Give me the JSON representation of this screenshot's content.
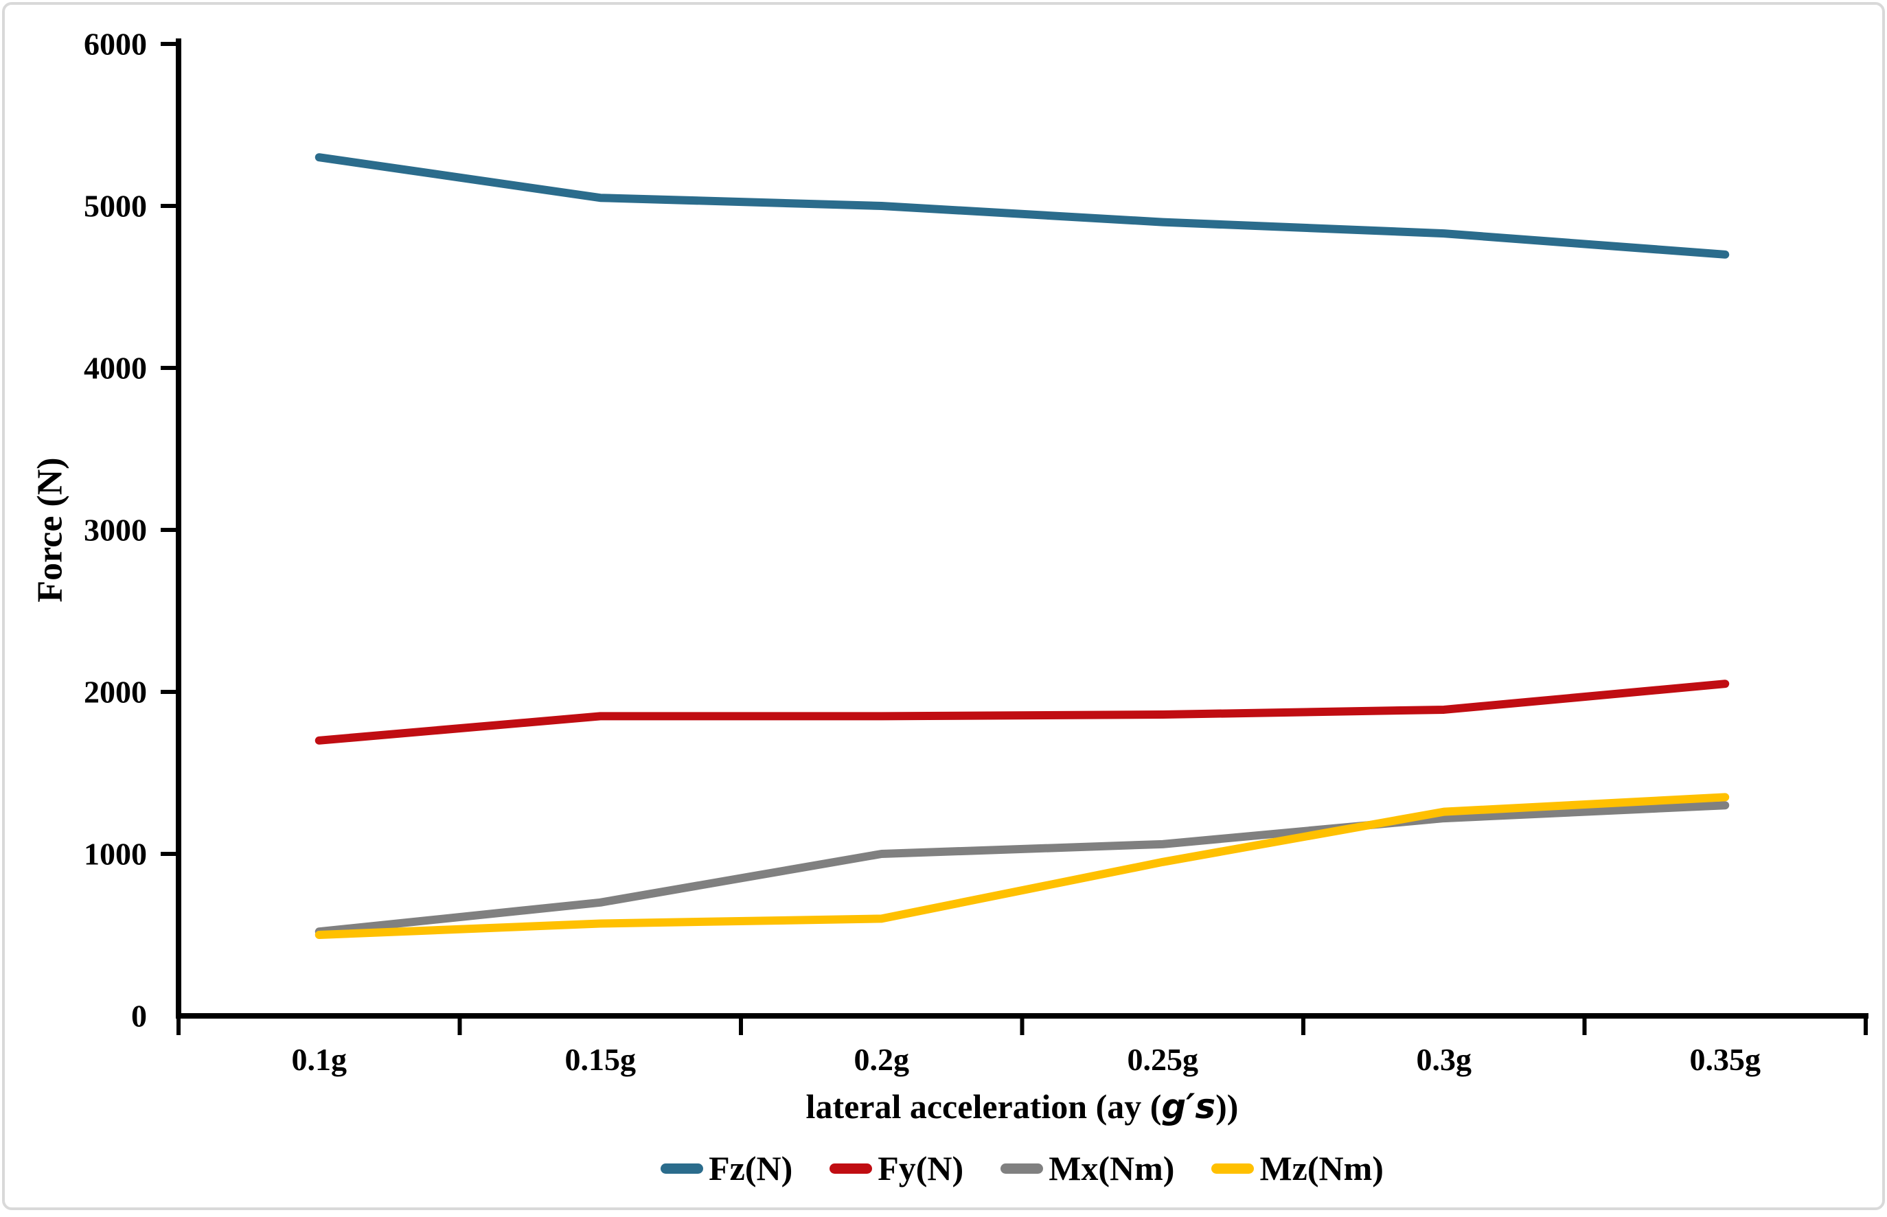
{
  "figure": {
    "background": "#ffffff",
    "border_color": "#d9d9d9"
  },
  "chart_data": {
    "type": "line",
    "title": "",
    "categories": [
      "0.1g",
      "0.15g",
      "0.2g",
      "0.25g",
      "0.3g",
      "0.35g"
    ],
    "series": [
      {
        "name": "Fz(N)",
        "color": "#2b6c8c",
        "values": [
          5300,
          5050,
          5000,
          4900,
          4830,
          4700
        ]
      },
      {
        "name": "Fy(N)",
        "color": "#c00d12",
        "values": [
          1700,
          1850,
          1850,
          1860,
          1890,
          2050
        ]
      },
      {
        "name": "Mx(Nm)",
        "color": "#808080",
        "values": [
          520,
          700,
          1000,
          1060,
          1220,
          1300
        ]
      },
      {
        "name": "Mz(Nm)",
        "color": "#ffc000",
        "values": [
          500,
          570,
          600,
          950,
          1260,
          1350
        ]
      }
    ],
    "xlabel_prefix": "lateral acceleration (ay (",
    "xlabel_italic": "g′s",
    "xlabel_suffix": "))",
    "ylabel": "Force (N)",
    "ylim": [
      0,
      6000
    ],
    "ytick_step": 1000,
    "ytick_labels": [
      "0",
      "1000",
      "2000",
      "3000",
      "4000",
      "5000",
      "6000"
    ],
    "grid": false,
    "legend_position": "bottom",
    "axis_color": "#000000",
    "line_width": 12
  }
}
